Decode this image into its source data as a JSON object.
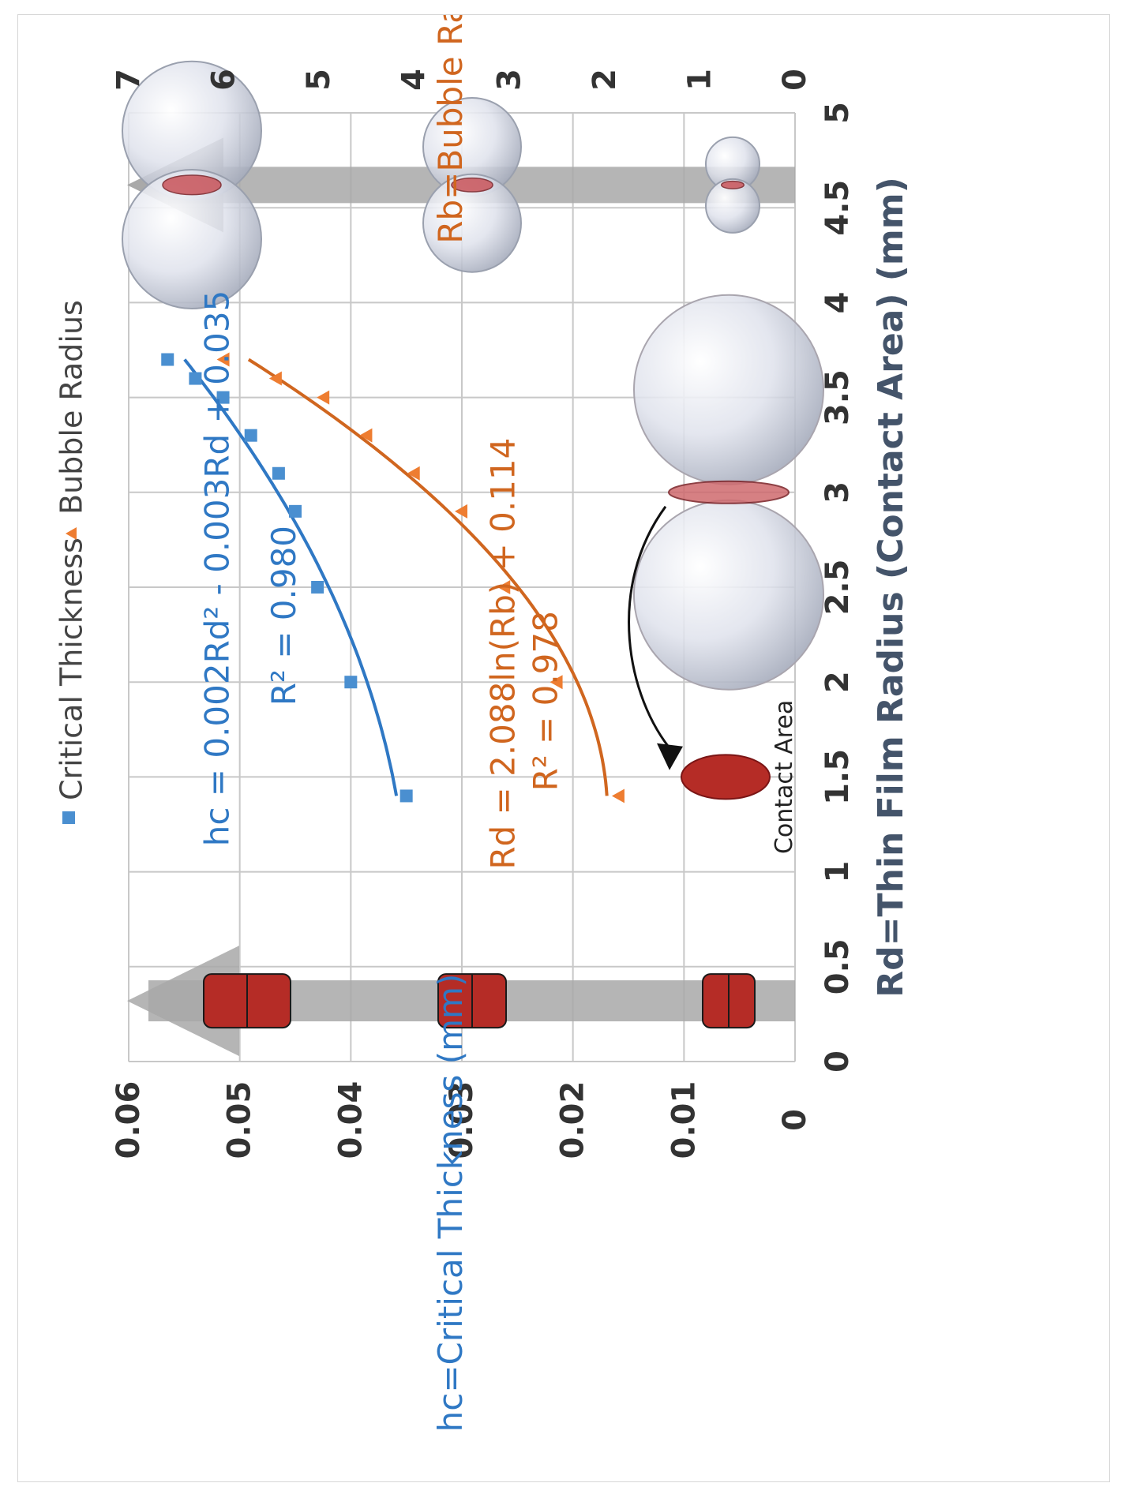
{
  "chart_data": {
    "type": "scatter",
    "x_axis": {
      "label": "Rd=Thin Film Radius (Contact Area) (mm)",
      "range": [
        0,
        5
      ],
      "ticks": [
        "0",
        "0.5",
        "1",
        "1.5",
        "2",
        "2.5",
        "3",
        "3.5",
        "4",
        "4.5",
        "5"
      ]
    },
    "y_axis_left": {
      "label": "hc=Critical Thickness (mm)",
      "range": [
        0,
        0.06
      ],
      "ticks": [
        "0",
        "0.01",
        "0.02",
        "0.03",
        "0.04",
        "0.05",
        "0.06"
      ]
    },
    "y_axis_right": {
      "label": "Rb=Bubble Radius (mm)",
      "range": [
        0,
        7
      ],
      "ticks": [
        "0",
        "1",
        "2",
        "3",
        "4",
        "5",
        "6",
        "7"
      ]
    },
    "grid": true,
    "legend_position": "top",
    "series": [
      {
        "name": "Critical Thickness",
        "axis": "left",
        "marker": "square",
        "color": "#4a8fd0",
        "points": [
          {
            "x": 1.4,
            "y": 0.035
          },
          {
            "x": 2.0,
            "y": 0.04
          },
          {
            "x": 2.5,
            "y": 0.043
          },
          {
            "x": 2.9,
            "y": 0.045
          },
          {
            "x": 3.1,
            "y": 0.0465
          },
          {
            "x": 3.3,
            "y": 0.049
          },
          {
            "x": 3.5,
            "y": 0.0515
          },
          {
            "x": 3.6,
            "y": 0.054
          },
          {
            "x": 3.7,
            "y": 0.0565
          }
        ],
        "fit_equation": "hc = 0.002Rd² - 0.003Rd + 0.035",
        "fit_r2": "R² = 0.980",
        "fit_color": "#2f78c4"
      },
      {
        "name": "Bubble Radius",
        "axis": "right",
        "marker": "triangle",
        "color": "#ee7d31",
        "points": [
          {
            "x": 1.4,
            "y": 1.85
          },
          {
            "x": 2.0,
            "y": 2.5
          },
          {
            "x": 2.5,
            "y": 3.05
          },
          {
            "x": 2.9,
            "y": 3.5
          },
          {
            "x": 3.1,
            "y": 4.0
          },
          {
            "x": 3.3,
            "y": 4.5
          },
          {
            "x": 3.5,
            "y": 4.95
          },
          {
            "x": 3.6,
            "y": 5.45
          },
          {
            "x": 3.7,
            "y": 6.0
          }
        ],
        "fit_equation": "Rd = 2.088ln(Rb) + 0.114",
        "fit_r2": "R² = 0.978",
        "fit_color": "#d0661f"
      }
    ],
    "annotations": {
      "contact_area_label": "Contact Area"
    }
  }
}
